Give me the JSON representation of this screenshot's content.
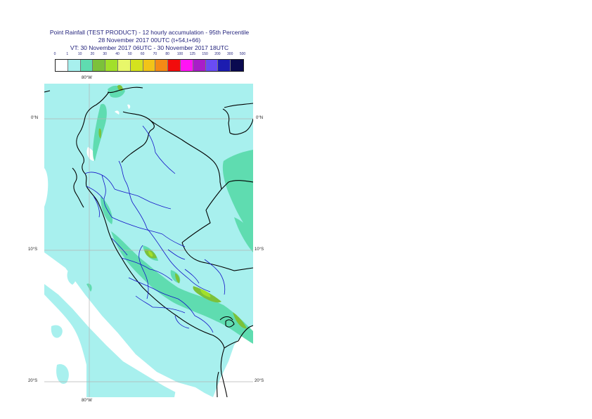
{
  "title": {
    "line1": "Point Rainfall (TEST PRODUCT) - 12 hourly accumulation - 95th Percentile",
    "line2": "28 November 2017 00UTC (t+54,t+66)",
    "line3": "VT: 30 November 2017 06UTC - 30 November 2017 18UTC"
  },
  "legend": {
    "thresholds": [
      "0",
      "1",
      "10",
      "20",
      "30",
      "40",
      "50",
      "60",
      "70",
      "80",
      "100",
      "125",
      "150",
      "200",
      "300",
      "500"
    ],
    "colors": [
      "#ffffff",
      "#a8f0ee",
      "#5fdcb0",
      "#7cc13a",
      "#a2e02a",
      "#e8f76a",
      "#d4e21e",
      "#f2c418",
      "#f58a16",
      "#f20c0c",
      "#ff14f4",
      "#a81ec8",
      "#6a4cf4",
      "#1c1cb0",
      "#0a0a50"
    ]
  },
  "map": {
    "lon_labels_top": [
      "80°W"
    ],
    "lon_labels_bottom": [
      "80°W"
    ],
    "lat_labels_left": [
      "0°N",
      "10°S",
      "20°S"
    ],
    "lat_labels_right": [
      "0°N",
      "10°S",
      "20°S"
    ],
    "colors": {
      "ocean_field": "#a8f0ee",
      "rain_10_20": "#5fdcb0",
      "rain_20_30": "#7cc13a",
      "rain_30_40": "#a2e02a",
      "coast": "#000000",
      "regions": "#1414c8",
      "grid": "#b4b4b4"
    }
  }
}
